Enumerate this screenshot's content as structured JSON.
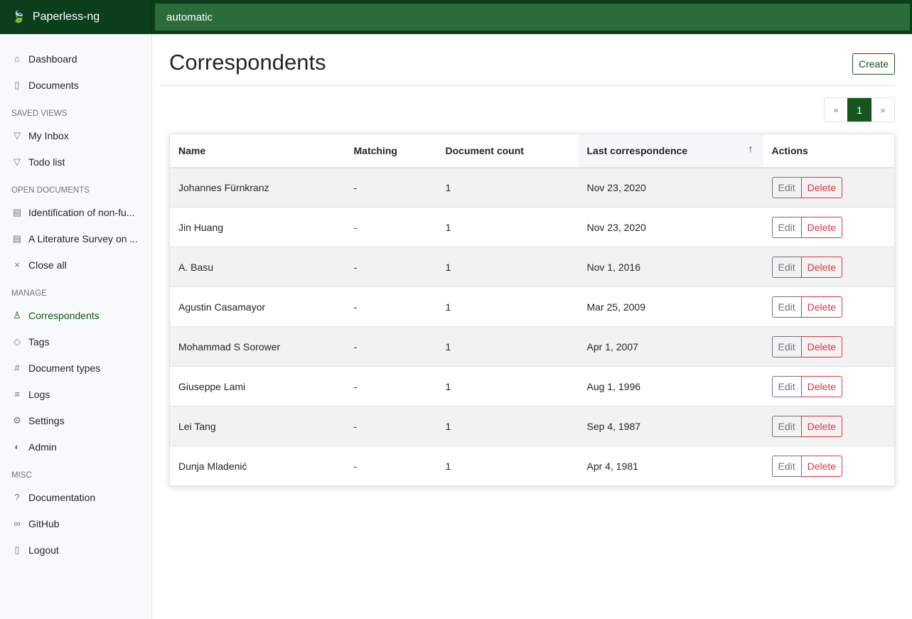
{
  "app": {
    "name": "Paperless-ng",
    "search_value": "automatic"
  },
  "sidebar": {
    "top": [
      {
        "label": "Dashboard",
        "icon": "house-icon"
      },
      {
        "label": "Documents",
        "icon": "files-icon"
      }
    ],
    "saved_views_title": "Saved views",
    "saved_views": [
      {
        "label": "My Inbox",
        "icon": "funnel-icon"
      },
      {
        "label": "Todo list",
        "icon": "funnel-icon"
      }
    ],
    "open_docs_title": "Open documents",
    "open_docs": [
      {
        "label": "Identification of non-fu...",
        "icon": "file-text-icon"
      },
      {
        "label": "A Literature Survey on ...",
        "icon": "file-text-icon"
      },
      {
        "label": "Close all",
        "icon": "x-icon"
      }
    ],
    "manage_title": "Manage",
    "manage": [
      {
        "label": "Correspondents",
        "icon": "person-icon"
      },
      {
        "label": "Tags",
        "icon": "tags-icon"
      },
      {
        "label": "Document types",
        "icon": "hash-icon"
      },
      {
        "label": "Logs",
        "icon": "text-left-icon"
      },
      {
        "label": "Settings",
        "icon": "gear-icon"
      },
      {
        "label": "Admin",
        "icon": "toggles-icon"
      }
    ],
    "misc_title": "Misc",
    "misc": [
      {
        "label": "Documentation",
        "icon": "question-circle-icon"
      },
      {
        "label": "GitHub",
        "icon": "link-icon"
      },
      {
        "label": "Logout",
        "icon": "door-icon"
      }
    ]
  },
  "page": {
    "title": "Correspondents",
    "create_label": "Create",
    "pager": {
      "prev": "«",
      "current": "1",
      "next": "»"
    }
  },
  "table": {
    "headers": [
      "Name",
      "Matching",
      "Document count",
      "Last correspondence",
      "Actions"
    ],
    "sort_indicator": "↑",
    "edit_label": "Edit",
    "delete_label": "Delete",
    "rows": [
      [
        "Johannes Fürnkranz",
        "-",
        "1",
        "Nov 23, 2020"
      ],
      [
        "Jin Huang",
        "-",
        "1",
        "Nov 23, 2020"
      ],
      [
        "A. Basu",
        "-",
        "1",
        "Nov 1, 2016"
      ],
      [
        "Agustin Casamayor",
        "-",
        "1",
        "Mar 25, 2009"
      ],
      [
        "Mohammad S Sorower",
        "-",
        "1",
        "Apr 1, 2007"
      ],
      [
        "Giuseppe Lami",
        "-",
        "1",
        "Aug 1, 1996"
      ],
      [
        "Lei Tang",
        "-",
        "1",
        "Sep 4, 1987"
      ],
      [
        "Dunja Mladenić",
        "-",
        "1",
        "Apr 4, 1981"
      ]
    ]
  }
}
